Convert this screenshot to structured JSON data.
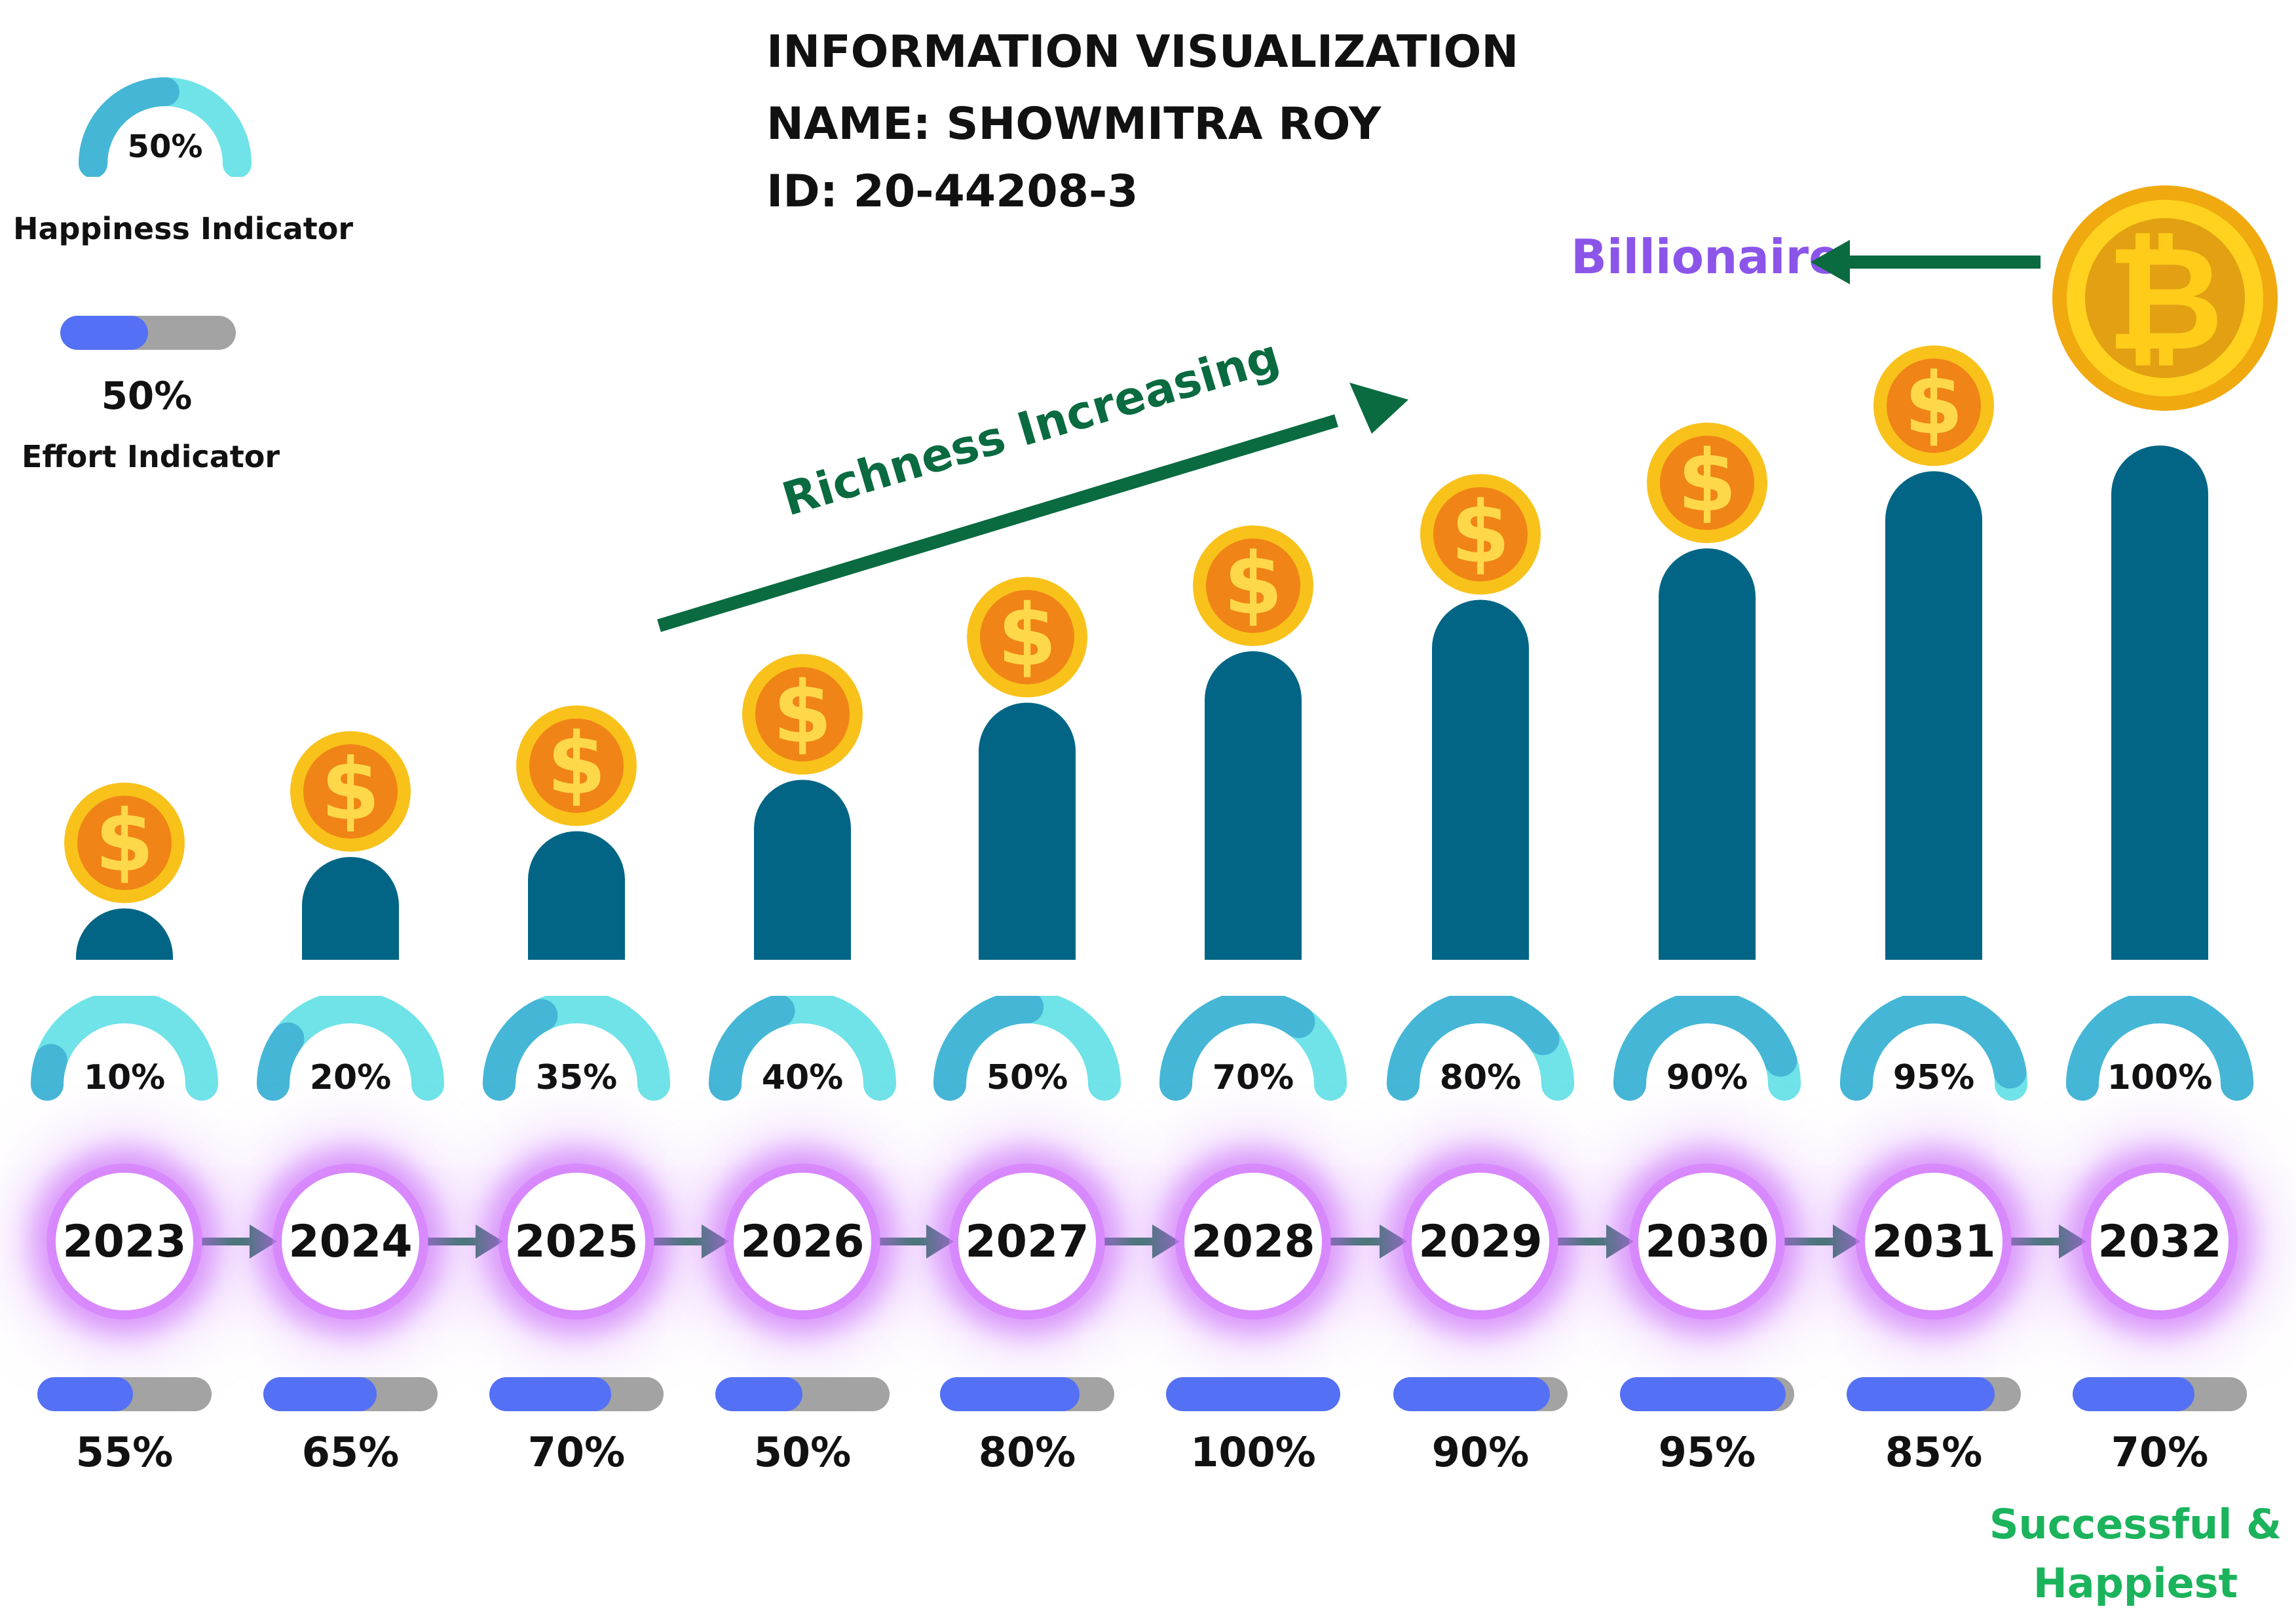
{
  "header": {
    "line1": "INFORMATION VISUALIZATION",
    "line2": "NAME: SHOWMITRA ROY",
    "line3": "ID: 20-44208-3"
  },
  "legend": {
    "happiness_value": "50%",
    "happiness_fraction": 0.5,
    "happiness_label": "Happiness Indicator",
    "effort_value": "50%",
    "effort_fraction": 0.5,
    "effort_label": "Effort Indicator"
  },
  "annotations": {
    "richness": "Richness Increasing",
    "billionaire": "Billionaire",
    "final_line1": "Successful &",
    "final_line2": "Happiest"
  },
  "icons": {
    "coin": "dollar-coin-icon",
    "big_coin": "bitcoin-icon",
    "timeline_arrow": "arrow-right-icon"
  },
  "colors": {
    "bar": "#036585",
    "gauge_fill": "#45b6d6",
    "gauge_track": "#6fe3e8",
    "effort_fill": "#5470f5",
    "effort_track": "#a3a3a3",
    "arrow": "#0a6a40",
    "billionaire": "#8b55ea",
    "success": "#1bb35c",
    "coin_outer": "#f8c21b",
    "coin_inner": "#f08416",
    "glow": "#c45cf5"
  },
  "chart_data": {
    "type": "bar",
    "categories": [
      "2023",
      "2024",
      "2025",
      "2026",
      "2027",
      "2028",
      "2029",
      "2030",
      "2031",
      "2032"
    ],
    "values": [
      1,
      2,
      2.5,
      3.5,
      5,
      6,
      7,
      8,
      9.5,
      10
    ],
    "happiness": {
      "labels": [
        "10%",
        "20%",
        "35%",
        "40%",
        "50%",
        "70%",
        "80%",
        "90%",
        "95%",
        "100%"
      ],
      "values": [
        0.1,
        0.2,
        0.35,
        0.4,
        0.5,
        0.7,
        0.8,
        0.9,
        0.95,
        1.0
      ]
    },
    "effort": {
      "labels": [
        "55%",
        "65%",
        "70%",
        "50%",
        "80%",
        "100%",
        "90%",
        "95%",
        "85%",
        "70%"
      ],
      "values": [
        0.55,
        0.65,
        0.7,
        0.5,
        0.8,
        1.0,
        0.9,
        0.95,
        0.85,
        0.7
      ]
    },
    "ylim": [
      0,
      10
    ],
    "xlabel": "",
    "ylabel": ""
  }
}
